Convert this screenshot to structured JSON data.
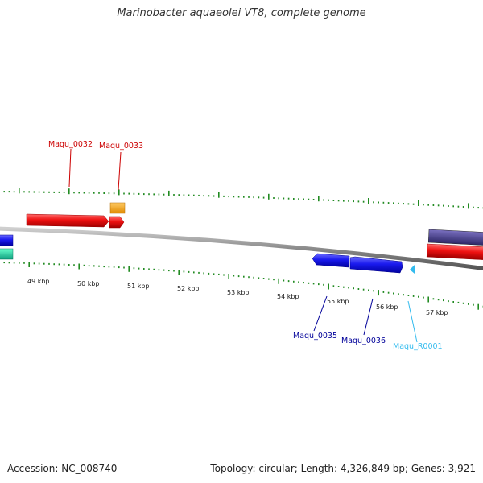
{
  "title": "Marinobacter aquaeolei VT8, complete genome",
  "footer": {
    "accession": "Accession: NC_008740",
    "summary": "Topology: circular; Length: 4,326,849 bp; Genes: 3,921"
  },
  "scale_labels": [
    "49 kbp",
    "50 kbp",
    "51 kbp",
    "52 kbp",
    "53 kbp",
    "54 kbp",
    "55 kbp",
    "56 kbp",
    "57 kbp"
  ],
  "gene_labels": [
    {
      "name": "Maqu_0032",
      "color": "#cc0000"
    },
    {
      "name": "Maqu_0033",
      "color": "#cc0000"
    },
    {
      "name": "Maqu_0035",
      "color": "#000099"
    },
    {
      "name": "Maqu_0036",
      "color": "#000099"
    },
    {
      "name": "Maqu_R0001",
      "color": "#33bbee"
    }
  ],
  "colors": {
    "backbone": "#808080",
    "ticks": "#228B22",
    "forward_gene": "#ee1111",
    "reverse_gene": "#1a1aee",
    "orange_gene": "#f39c12",
    "teal_gene": "#1abc9c",
    "purple_gene": "#4a3f8f",
    "rna_gene": "#33bbee"
  }
}
